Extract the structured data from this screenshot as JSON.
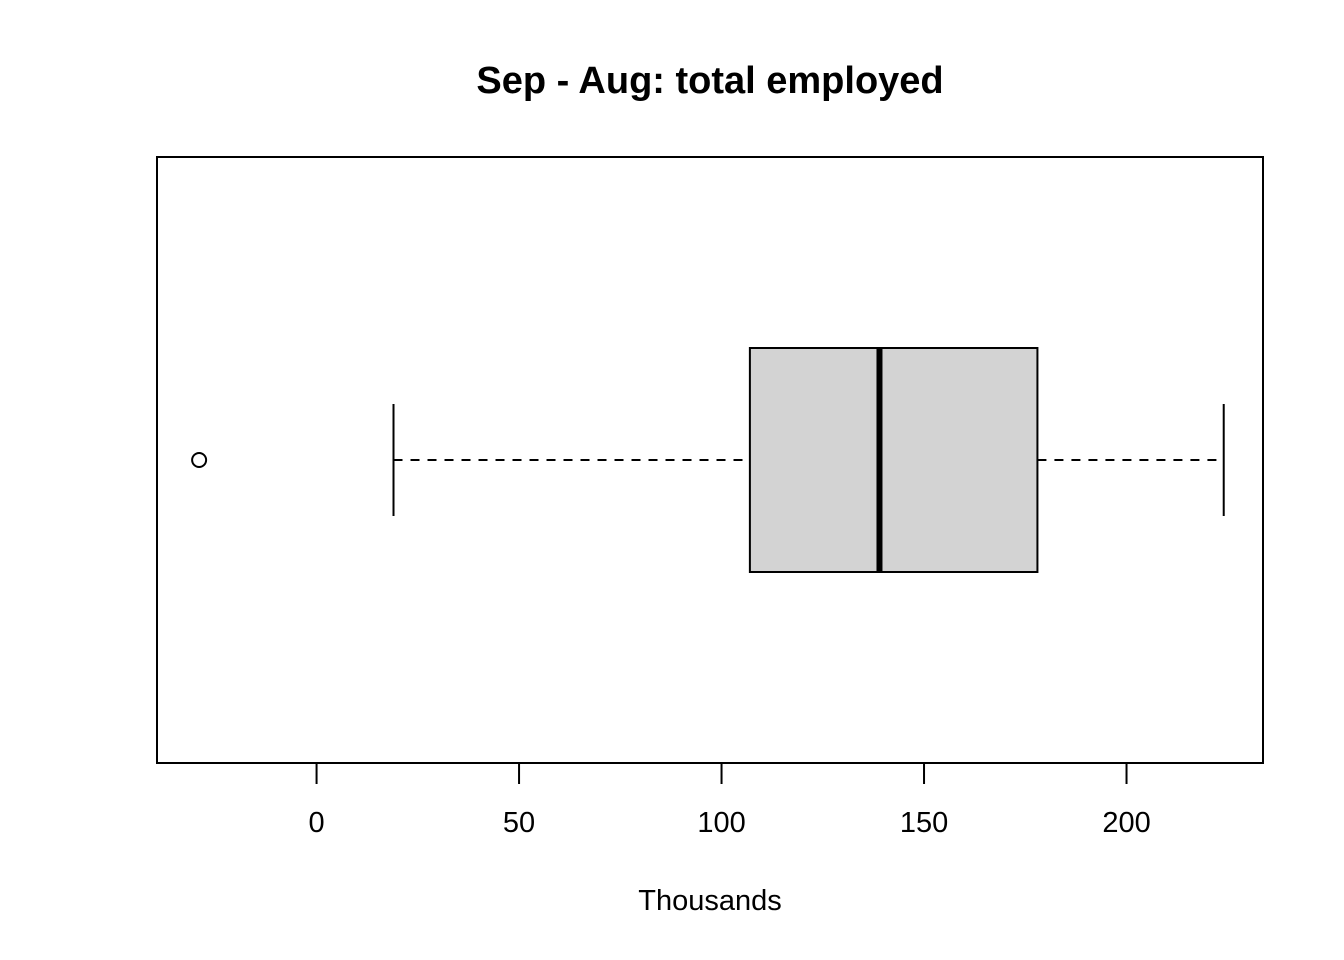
{
  "chart_data": {
    "type": "boxplot",
    "orientation": "horizontal",
    "title": "Sep - Aug: total employed",
    "xlabel": "Thousands",
    "ylabel": "",
    "xlim": [
      -39.4,
      233.7
    ],
    "xticks": [
      0,
      50,
      100,
      150,
      200
    ],
    "xtick_labels": [
      "0",
      "50",
      "100",
      "150",
      "200"
    ],
    "grid": false,
    "box": {
      "whisker_low": 19,
      "q1": 107,
      "median": 139,
      "q3": 178,
      "whisker_high": 224,
      "outliers": [
        -29
      ],
      "fill": "#d3d3d3"
    }
  }
}
